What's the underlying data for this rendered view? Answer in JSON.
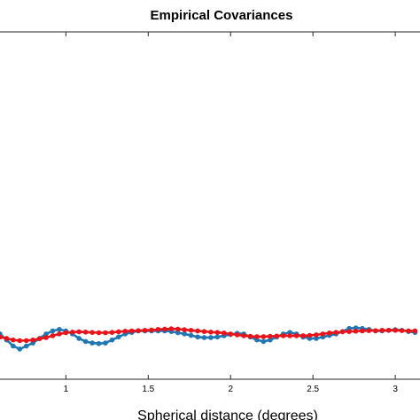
{
  "chart_data": {
    "type": "line",
    "title": "Empirical Covariances",
    "xlabel": "Spherical distance (degrees)",
    "ylabel": "",
    "xlim": [
      0.6,
      3.15
    ],
    "ylim": [
      -0.15,
      1
    ],
    "xticks": [
      1,
      1.5,
      2,
      2.5,
      3
    ],
    "xtick_labels": [
      "1",
      "1.5",
      "2",
      "2.5",
      "3"
    ],
    "grid": false,
    "legend": "none",
    "series": [
      {
        "color": "#1f77b4",
        "points": [
          [
            0.6,
            0.0
          ],
          [
            0.64,
            -0.02
          ],
          [
            0.68,
            -0.04
          ],
          [
            0.72,
            -0.05
          ],
          [
            0.76,
            -0.04
          ],
          [
            0.8,
            -0.03
          ],
          [
            0.84,
            -0.015
          ],
          [
            0.88,
            0.0
          ],
          [
            0.92,
            0.01
          ],
          [
            0.96,
            0.015
          ],
          [
            1.0,
            0.01
          ],
          [
            1.04,
            0.0
          ],
          [
            1.08,
            -0.015
          ],
          [
            1.12,
            -0.025
          ],
          [
            1.16,
            -0.03
          ],
          [
            1.2,
            -0.032
          ],
          [
            1.24,
            -0.03
          ],
          [
            1.28,
            -0.02
          ],
          [
            1.32,
            -0.01
          ],
          [
            1.36,
            0.0
          ],
          [
            1.4,
            0.005
          ],
          [
            1.44,
            0.01
          ],
          [
            1.48,
            0.01
          ],
          [
            1.52,
            0.01
          ],
          [
            1.56,
            0.01
          ],
          [
            1.6,
            0.01
          ],
          [
            1.64,
            0.008
          ],
          [
            1.68,
            0.004
          ],
          [
            1.72,
            0.0
          ],
          [
            1.76,
            -0.005
          ],
          [
            1.8,
            -0.01
          ],
          [
            1.84,
            -0.012
          ],
          [
            1.88,
            -0.012
          ],
          [
            1.92,
            -0.01
          ],
          [
            1.96,
            -0.006
          ],
          [
            2.0,
            -0.002
          ],
          [
            2.04,
            0.002
          ],
          [
            2.08,
            0.0
          ],
          [
            2.12,
            -0.01
          ],
          [
            2.16,
            -0.02
          ],
          [
            2.2,
            -0.025
          ],
          [
            2.24,
            -0.02
          ],
          [
            2.28,
            -0.01
          ],
          [
            2.32,
            0.0
          ],
          [
            2.36,
            0.005
          ],
          [
            2.4,
            0.0
          ],
          [
            2.44,
            -0.01
          ],
          [
            2.48,
            -0.015
          ],
          [
            2.52,
            -0.015
          ],
          [
            2.56,
            -0.01
          ],
          [
            2.6,
            -0.005
          ],
          [
            2.64,
            0.0
          ],
          [
            2.68,
            0.008
          ],
          [
            2.72,
            0.018
          ],
          [
            2.76,
            0.02
          ],
          [
            2.8,
            0.018
          ],
          [
            2.84,
            0.015
          ],
          [
            2.88,
            0.01
          ],
          [
            2.92,
            0.01
          ],
          [
            2.96,
            0.012
          ],
          [
            3.0,
            0.014
          ],
          [
            3.04,
            0.012
          ],
          [
            3.08,
            0.008
          ],
          [
            3.12,
            0.005
          ]
        ]
      },
      {
        "color": "#e8141b",
        "points": [
          [
            0.6,
            -0.01
          ],
          [
            0.64,
            -0.015
          ],
          [
            0.68,
            -0.02
          ],
          [
            0.72,
            -0.022
          ],
          [
            0.76,
            -0.022
          ],
          [
            0.8,
            -0.02
          ],
          [
            0.84,
            -0.016
          ],
          [
            0.88,
            -0.012
          ],
          [
            0.92,
            -0.006
          ],
          [
            0.96,
            0.0
          ],
          [
            1.0,
            0.004
          ],
          [
            1.04,
            0.006
          ],
          [
            1.08,
            0.007
          ],
          [
            1.12,
            0.006
          ],
          [
            1.16,
            0.005
          ],
          [
            1.2,
            0.004
          ],
          [
            1.24,
            0.004
          ],
          [
            1.28,
            0.005
          ],
          [
            1.32,
            0.007
          ],
          [
            1.36,
            0.009
          ],
          [
            1.4,
            0.01
          ],
          [
            1.44,
            0.011
          ],
          [
            1.48,
            0.012
          ],
          [
            1.52,
            0.013
          ],
          [
            1.56,
            0.015
          ],
          [
            1.6,
            0.016
          ],
          [
            1.64,
            0.017
          ],
          [
            1.68,
            0.016
          ],
          [
            1.72,
            0.014
          ],
          [
            1.76,
            0.012
          ],
          [
            1.8,
            0.01
          ],
          [
            1.84,
            0.008
          ],
          [
            1.88,
            0.006
          ],
          [
            1.92,
            0.005
          ],
          [
            1.96,
            0.003
          ],
          [
            2.0,
            0.0
          ],
          [
            2.04,
            -0.003
          ],
          [
            2.08,
            -0.006
          ],
          [
            2.12,
            -0.008
          ],
          [
            2.16,
            -0.009
          ],
          [
            2.2,
            -0.009
          ],
          [
            2.24,
            -0.008
          ],
          [
            2.28,
            -0.007
          ],
          [
            2.32,
            -0.006
          ],
          [
            2.36,
            -0.006
          ],
          [
            2.4,
            -0.006
          ],
          [
            2.44,
            -0.006
          ],
          [
            2.48,
            -0.005
          ],
          [
            2.52,
            -0.003
          ],
          [
            2.56,
            0.0
          ],
          [
            2.6,
            0.003
          ],
          [
            2.64,
            0.005
          ],
          [
            2.68,
            0.007
          ],
          [
            2.72,
            0.008
          ],
          [
            2.76,
            0.009
          ],
          [
            2.8,
            0.01
          ],
          [
            2.84,
            0.011
          ],
          [
            2.88,
            0.011
          ],
          [
            2.92,
            0.012
          ],
          [
            2.96,
            0.012
          ],
          [
            3.0,
            0.012
          ],
          [
            3.04,
            0.011
          ],
          [
            3.08,
            0.01
          ],
          [
            3.12,
            0.01
          ]
        ]
      }
    ]
  }
}
